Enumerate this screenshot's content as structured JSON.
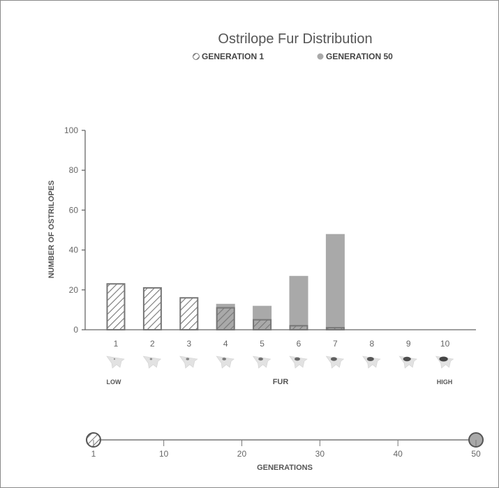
{
  "chart_data": {
    "type": "bar",
    "title": "Ostrilope Fur Distribution",
    "xlabel": "FUR",
    "ylabel": "NUMBER OF OSTRILOPES",
    "x_low_label": "LOW",
    "x_high_label": "HIGH",
    "categories": [
      "1",
      "2",
      "3",
      "4",
      "5",
      "6",
      "7",
      "8",
      "9",
      "10"
    ],
    "y_ticks": [
      "0",
      "20",
      "40",
      "60",
      "80",
      "100"
    ],
    "ylim": [
      0,
      100
    ],
    "legend_position": "top",
    "series": [
      {
        "name": "GENERATION 1",
        "style": "hatched",
        "values": [
          23,
          21,
          16,
          11,
          5,
          2,
          1,
          0,
          0,
          0
        ]
      },
      {
        "name": "GENERATION 50",
        "style": "solid",
        "values": [
          0,
          0,
          0,
          13,
          12,
          27,
          48,
          0,
          0,
          0
        ]
      }
    ],
    "colors": {
      "gen50_fill": "#a9a9a9",
      "hatch": "#777777",
      "axis": "#666666"
    },
    "slider": {
      "label": "GENERATIONS",
      "ticks": [
        "1",
        "10",
        "20",
        "30",
        "40",
        "50"
      ],
      "min": 1,
      "max": 50,
      "start_value": 1,
      "end_value": 50
    },
    "icon_name": "ostrilope-icon"
  }
}
